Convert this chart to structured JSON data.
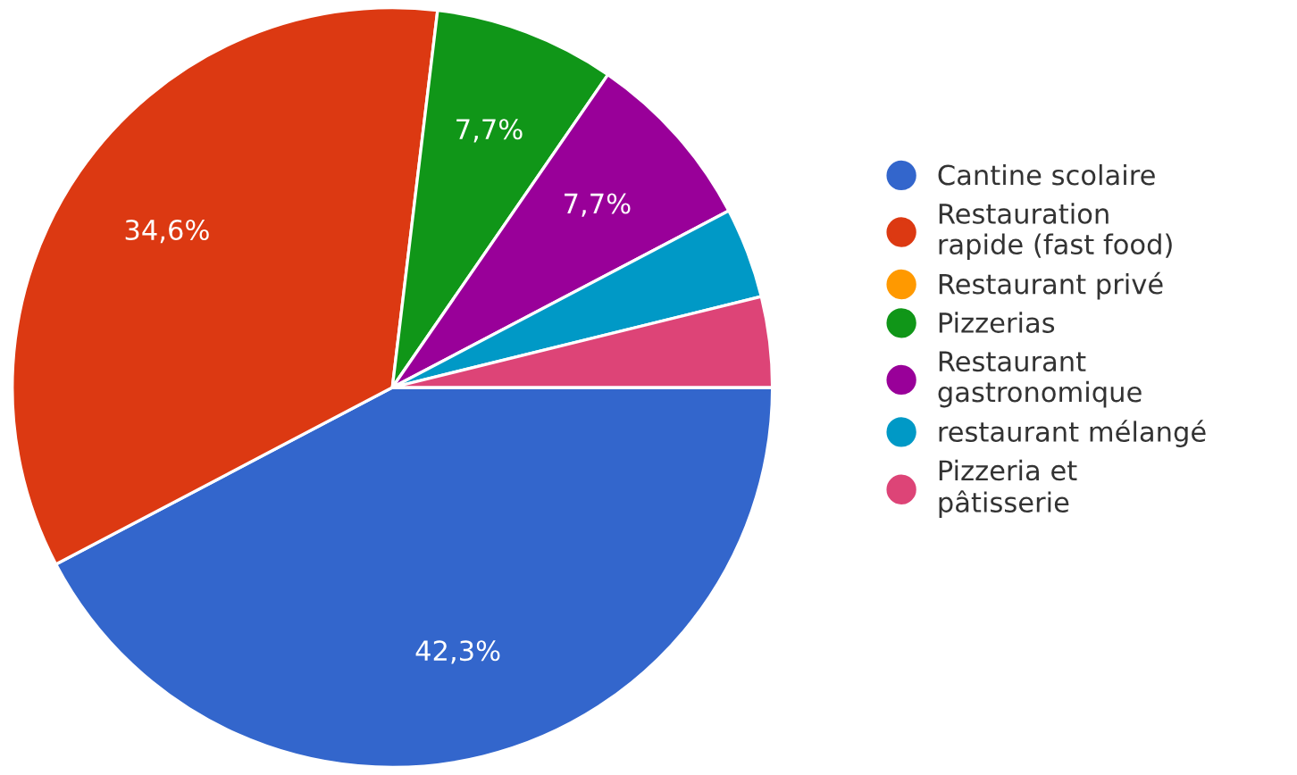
{
  "chart_data": {
    "type": "pie",
    "categories": [
      "Cantine scolaire",
      "Restauration\nrapide (fast food)",
      "Restaurant privé",
      "Pizzerias",
      "Restaurant\ngastronomique",
      "restaurant mélangé",
      "Pizzeria et\npâtisserie"
    ],
    "values": [
      42.3,
      34.6,
      0,
      7.7,
      7.7,
      3.85,
      3.85
    ],
    "value_labels": [
      "42,3%",
      "34,6%",
      null,
      "7,7%",
      "7,7%",
      null,
      null
    ],
    "colors": [
      "#3366cc",
      "#dc3912",
      "#ff9900",
      "#109618",
      "#990099",
      "#0099c6",
      "#dd4477"
    ],
    "legend": "right"
  }
}
